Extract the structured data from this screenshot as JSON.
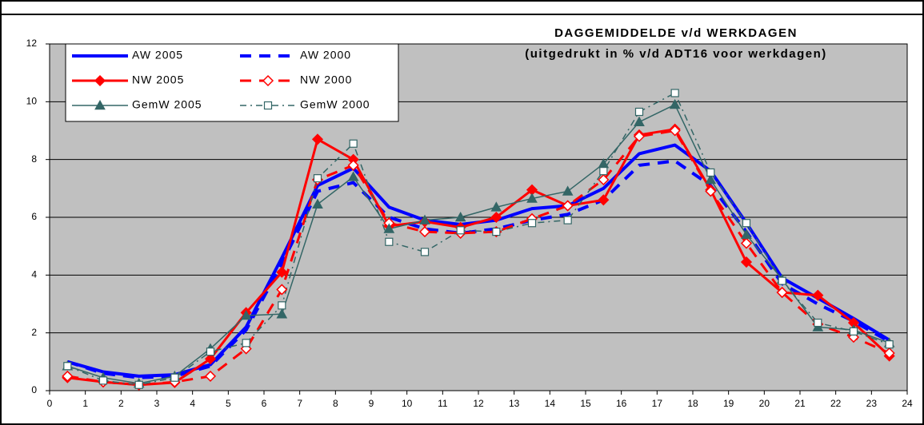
{
  "chart_data": {
    "type": "line",
    "title": "DAGGEMIDDELDE v/d WERKDAGEN",
    "subtitle": "(uitgedrukt in % v/d ADT16 voor werkdagen)",
    "x": [
      0.5,
      1.5,
      2.5,
      3.5,
      4.5,
      5.5,
      6.5,
      7.5,
      8.5,
      9.5,
      10.5,
      11.5,
      12.5,
      13.5,
      14.5,
      15.5,
      16.5,
      17.5,
      18.5,
      19.5,
      20.5,
      21.5,
      22.5,
      23.5
    ],
    "xlim": [
      0,
      24
    ],
    "xticks": [
      0,
      1,
      2,
      3,
      4,
      5,
      6,
      7,
      8,
      9,
      10,
      11,
      12,
      13,
      14,
      15,
      16,
      17,
      18,
      19,
      20,
      21,
      22,
      23,
      24
    ],
    "ylim": [
      0,
      12
    ],
    "yticks": [
      0,
      2,
      4,
      6,
      8,
      10,
      12
    ],
    "grid": true,
    "legend": "top-left",
    "series": [
      {
        "name": "AW 2005",
        "color": "#0000ff",
        "line_style": "solid",
        "line_width": 4,
        "marker": "none",
        "values": [
          1.0,
          0.65,
          0.5,
          0.55,
          0.9,
          2.2,
          4.6,
          7.1,
          7.7,
          6.35,
          5.9,
          5.75,
          5.9,
          6.3,
          6.4,
          7.0,
          8.2,
          8.5,
          7.6,
          5.8,
          3.9,
          3.2,
          2.5,
          1.75
        ]
      },
      {
        "name": "AW 2000",
        "color": "#0000ff",
        "line_style": "dashed",
        "line_width": 4,
        "marker": "none",
        "values": [
          1.0,
          0.6,
          0.45,
          0.5,
          0.85,
          2.1,
          4.4,
          6.9,
          7.2,
          6.0,
          5.6,
          5.45,
          5.6,
          5.9,
          6.1,
          6.6,
          7.8,
          7.95,
          7.1,
          5.5,
          3.7,
          3.0,
          2.4,
          1.7
        ]
      },
      {
        "name": "NW 2005",
        "color": "#ff0000",
        "line_style": "solid",
        "line_width": 3,
        "marker": "diamond",
        "values": [
          0.45,
          0.3,
          0.2,
          0.28,
          1.1,
          2.7,
          4.1,
          8.7,
          8.0,
          5.7,
          5.85,
          5.65,
          6.0,
          6.95,
          6.4,
          6.6,
          8.85,
          9.05,
          6.95,
          4.45,
          3.4,
          3.3,
          2.35,
          1.2
        ]
      },
      {
        "name": "NW 2000",
        "color": "#ff0000",
        "line_style": "dashed",
        "line_width": 3,
        "marker": "open-diamond",
        "values": [
          0.5,
          0.3,
          0.2,
          0.3,
          0.5,
          1.45,
          3.5,
          7.3,
          7.8,
          5.8,
          5.5,
          5.45,
          5.5,
          5.95,
          6.4,
          7.3,
          8.8,
          9.0,
          6.9,
          5.1,
          3.4,
          2.3,
          1.85,
          1.3
        ]
      },
      {
        "name": "GemW 2005",
        "color": "#336666",
        "line_style": "solid",
        "line_width": 1.5,
        "marker": "triangle",
        "values": [
          0.85,
          0.45,
          0.25,
          0.5,
          1.45,
          2.6,
          2.65,
          6.45,
          7.4,
          5.6,
          5.9,
          6.0,
          6.35,
          6.65,
          6.9,
          7.85,
          9.3,
          9.9,
          7.3,
          5.4,
          3.85,
          2.2,
          2.1,
          1.65
        ]
      },
      {
        "name": "GemW 2000",
        "color": "#336666",
        "line_style": "dashed",
        "line_width": 1.5,
        "marker": "open-square",
        "values": [
          0.85,
          0.35,
          0.2,
          0.45,
          1.35,
          1.65,
          2.95,
          7.35,
          8.55,
          5.15,
          4.8,
          5.55,
          5.5,
          5.8,
          5.9,
          7.6,
          9.65,
          10.3,
          7.55,
          5.8,
          3.8,
          2.35,
          2.05,
          1.6
        ]
      }
    ]
  }
}
